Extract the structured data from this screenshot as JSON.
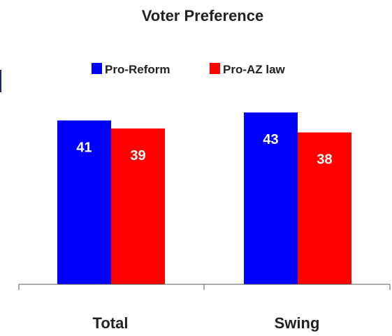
{
  "chart_data": {
    "type": "bar",
    "title": "Voter Preference",
    "categories": [
      "Total",
      "Swing"
    ],
    "series": [
      {
        "name": "Pro-Reform",
        "values": [
          41,
          43
        ],
        "color": "#0000ff"
      },
      {
        "name": "Pro-AZ law",
        "values": [
          39,
          38
        ],
        "color": "#ff0000"
      }
    ],
    "xlabel": "",
    "ylabel": "",
    "ylim": [
      0,
      45
    ],
    "grid": false,
    "legend": "top-center",
    "data_labels": true
  }
}
